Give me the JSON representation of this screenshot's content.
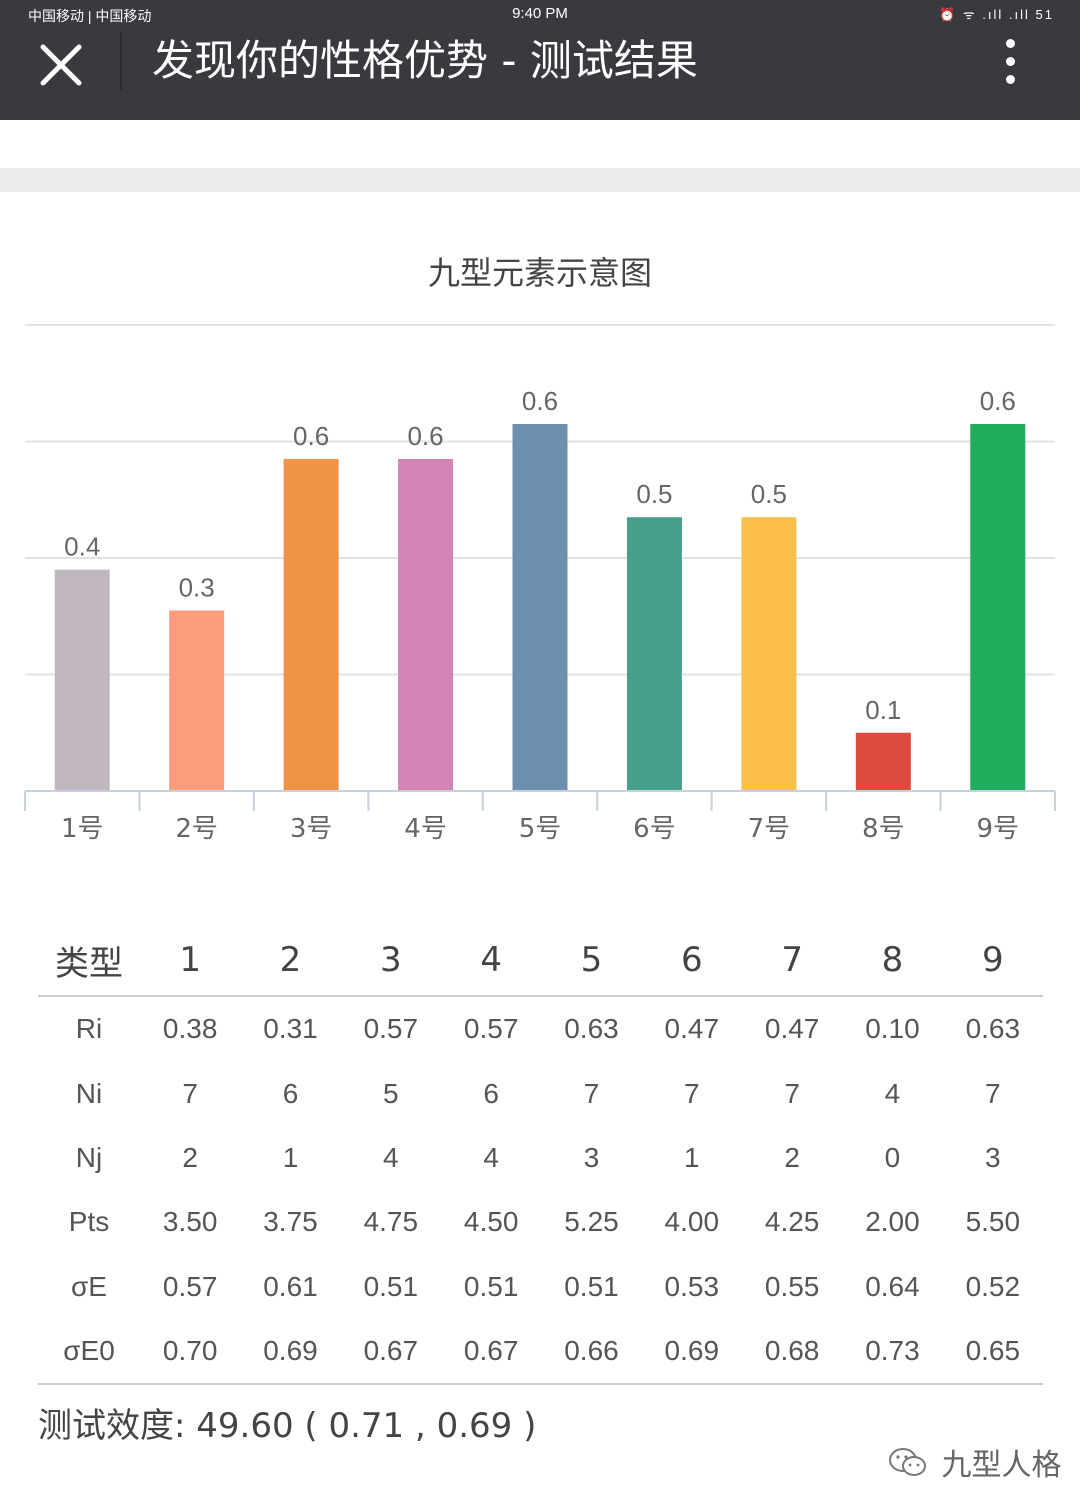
{
  "status_bar": {
    "carrier": "中国移动 | 中国移动",
    "time": "9:40 PM",
    "icons": "⏰ ᯤ .ıll .ıll 51"
  },
  "title_bar": {
    "close_icon": "close-icon",
    "title": "发现你的性格优势 - 测试结果",
    "more_icon": "more-vertical-icon"
  },
  "chart_data": {
    "type": "bar",
    "title": "九型元素示意图",
    "categories": [
      "1号",
      "2号",
      "3号",
      "4号",
      "5号",
      "6号",
      "7号",
      "8号",
      "9号"
    ],
    "values": [
      0.4,
      0.3,
      0.6,
      0.6,
      0.6,
      0.5,
      0.5,
      0.1,
      0.6
    ],
    "value_labels": [
      "0.4",
      "0.3",
      "0.6",
      "0.6",
      "0.6",
      "0.5",
      "0.5",
      "0.1",
      "0.6"
    ],
    "bar_values": [
      0.38,
      0.31,
      0.57,
      0.57,
      0.63,
      0.47,
      0.47,
      0.1,
      0.63
    ],
    "ylim": [
      0,
      0.8
    ],
    "grid": true,
    "colors": [
      "#c0b6bf",
      "#fa9d7d",
      "#f09346",
      "#d284b4",
      "#6b8fac",
      "#47a08c",
      "#fbbe4b",
      "#dc4c3e",
      "#20ad5e"
    ]
  },
  "table": {
    "header": [
      "类型",
      "1",
      "2",
      "3",
      "4",
      "5",
      "6",
      "7",
      "8",
      "9"
    ],
    "rows": [
      [
        "Ri",
        "0.38",
        "0.31",
        "0.57",
        "0.57",
        "0.63",
        "0.47",
        "0.47",
        "0.10",
        "0.63"
      ],
      [
        "Ni",
        "7",
        "6",
        "5",
        "6",
        "7",
        "7",
        "7",
        "4",
        "7"
      ],
      [
        "Nj",
        "2",
        "1",
        "4",
        "4",
        "3",
        "1",
        "2",
        "0",
        "3"
      ],
      [
        "Pts",
        "3.50",
        "3.75",
        "4.75",
        "4.50",
        "5.25",
        "4.00",
        "4.25",
        "2.00",
        "5.50"
      ],
      [
        "σE",
        "0.57",
        "0.61",
        "0.51",
        "0.51",
        "0.51",
        "0.53",
        "0.55",
        "0.64",
        "0.52"
      ],
      [
        "σE0",
        "0.70",
        "0.69",
        "0.67",
        "0.67",
        "0.66",
        "0.69",
        "0.68",
        "0.73",
        "0.65"
      ]
    ]
  },
  "efficacy": "测试效度: 49.60 ( 0.71 , 0.69 )",
  "watermark": {
    "icon": "wechat-icon",
    "text": "九型人格"
  }
}
